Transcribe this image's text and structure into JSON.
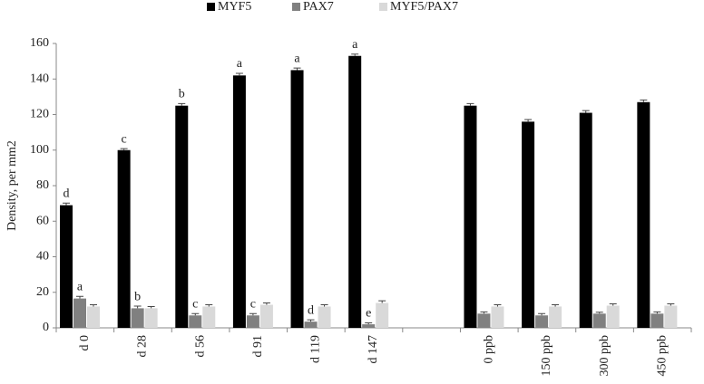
{
  "chart_data": {
    "type": "bar",
    "y_label": "Density, per mm2",
    "categories": [
      "d 0",
      "d 28",
      "d 56",
      "d 91",
      "d 119",
      "d 147",
      null,
      "0 ppb",
      "150 ppb",
      "300 ppb",
      "450 ppb"
    ],
    "series": [
      {
        "name": "MYF5",
        "color": "#000000",
        "values": [
          69,
          100,
          125,
          142,
          145,
          153,
          null,
          125,
          116,
          121,
          127
        ],
        "errors": [
          1.2,
          0.8,
          1.2,
          1.2,
          1.2,
          1,
          null,
          1.2,
          1.2,
          1.2,
          1.2
        ],
        "letters": [
          "d",
          "c",
          "b",
          "a",
          "a",
          "a",
          null,
          null,
          null,
          null,
          null
        ]
      },
      {
        "name": "PAX7",
        "color": "#808080",
        "values": [
          16.5,
          11,
          7,
          7,
          3.5,
          2,
          null,
          8,
          7,
          8,
          8
        ],
        "errors": [
          1.2,
          1.2,
          1,
          1,
          1,
          0.8,
          null,
          1,
          1,
          0.8,
          1
        ],
        "letters": [
          "a",
          "b",
          "c",
          "c",
          "d",
          "e",
          null,
          null,
          null,
          null,
          null
        ]
      },
      {
        "name": "MYF5/PAX7",
        "color": "#d9d9d9",
        "values": [
          12,
          11,
          12,
          13,
          12,
          14,
          null,
          12,
          12,
          12.5,
          12.5
        ],
        "errors": [
          1,
          1,
          1,
          1,
          1,
          1.2,
          null,
          1,
          1,
          1,
          1
        ],
        "letters": [
          null,
          null,
          null,
          null,
          null,
          null,
          null,
          null,
          null,
          null,
          null
        ]
      }
    ],
    "ylim": [
      0,
      160
    ],
    "yticks": [
      0,
      20,
      40,
      60,
      80,
      100,
      120,
      140,
      160
    ],
    "grid": false,
    "legend": "top"
  }
}
